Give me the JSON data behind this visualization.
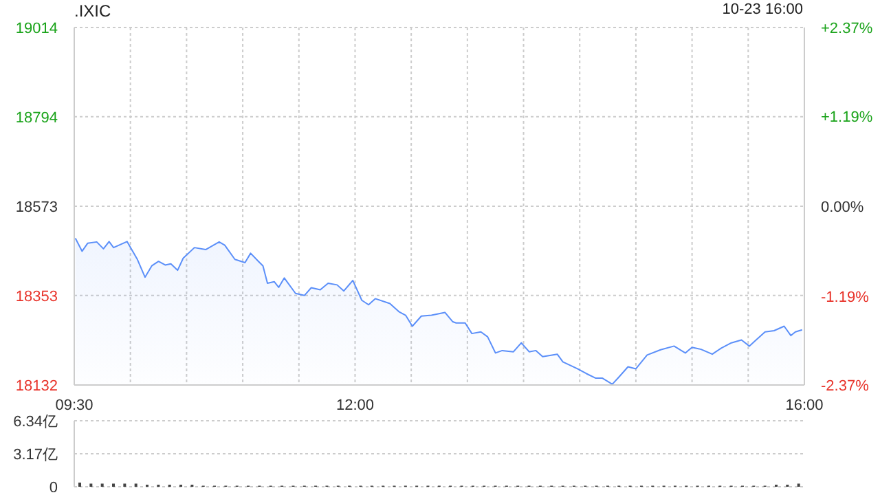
{
  "chart_data": [
    {
      "type": "area",
      "title": ".IXIC",
      "subtitle": "10-23 16:00",
      "x": [
        9.51,
        9.57,
        9.62,
        9.7,
        9.76,
        9.81,
        9.85,
        9.97,
        10.06,
        10.13,
        10.19,
        10.25,
        10.31,
        10.36,
        10.42,
        10.47,
        10.57,
        10.67,
        10.79,
        10.84,
        10.93,
        11.02,
        11.07,
        11.14,
        11.18,
        11.22,
        11.28,
        11.32,
        11.37,
        11.47,
        11.55,
        11.61,
        11.69,
        11.76,
        11.84,
        11.9,
        11.98,
        12.06,
        12.12,
        12.18,
        12.31,
        12.39,
        12.45,
        12.51,
        12.59,
        12.68,
        12.8,
        12.87,
        12.9,
        12.98,
        13.04,
        13.12,
        13.18,
        13.25,
        13.31,
        13.41,
        13.48,
        13.55,
        13.61,
        13.67,
        13.8,
        13.85,
        13.98,
        14.06,
        14.14,
        14.2,
        14.29,
        14.35,
        14.43,
        14.5,
        14.6,
        14.72,
        14.84,
        14.94,
        15,
        15.08,
        15.18,
        15.26,
        15.35,
        15.44,
        15.51,
        15.57,
        15.65,
        15.73,
        15.82,
        15.88,
        15.92,
        15.98
      ],
      "series": [
        {
          "color": "#5b8ff9",
          "values": [
            18494,
            18462,
            18482,
            18485,
            18468,
            18486,
            18471,
            18486,
            18443,
            18398,
            18426,
            18437,
            18428,
            18431,
            18415,
            18445,
            18471,
            18466,
            18485,
            18477,
            18442,
            18434,
            18457,
            18437,
            18426,
            18383,
            18387,
            18373,
            18396,
            18358,
            18353,
            18372,
            18367,
            18383,
            18379,
            18364,
            18390,
            18341,
            18330,
            18345,
            18333,
            18313,
            18304,
            18277,
            18302,
            18304,
            18311,
            18288,
            18285,
            18285,
            18259,
            18263,
            18251,
            18211,
            18217,
            18214,
            18236,
            18214,
            18217,
            18202,
            18208,
            18189,
            18172,
            18160,
            18149,
            18149,
            18134,
            18152,
            18177,
            18172,
            18206,
            18219,
            18228,
            18211,
            18225,
            18220,
            18208,
            18223,
            18236,
            18243,
            18228,
            18243,
            18263,
            18266,
            18277,
            18254,
            18263,
            18268
          ]
        }
      ],
      "xlim": [
        9.5,
        16
      ],
      "xticks": [
        {
          "value": 9.5,
          "label": "09:30"
        },
        {
          "value": 10,
          "label": null
        },
        {
          "value": 10.5,
          "label": null
        },
        {
          "value": 11,
          "label": null
        },
        {
          "value": 11.5,
          "label": null
        },
        {
          "value": 12,
          "label": "12:00"
        },
        {
          "value": 12.5,
          "label": null
        },
        {
          "value": 13,
          "label": null
        },
        {
          "value": 13.5,
          "label": null
        },
        {
          "value": 14,
          "label": null
        },
        {
          "value": 14.5,
          "label": null
        },
        {
          "value": 15,
          "label": null
        },
        {
          "value": 15.5,
          "label": null
        },
        {
          "value": 16,
          "label": "16:00"
        }
      ],
      "ylim": [
        18132,
        19014
      ],
      "yticks": [
        18132,
        18353,
        18573,
        18794,
        19014
      ],
      "y2lim": [
        -2.37,
        2.37
      ],
      "y2ticks": [
        {
          "value": -2.37,
          "label": "-2.37%"
        },
        {
          "value": -1.19,
          "label": "-1.19%"
        },
        {
          "value": 0,
          "label": "0.00%"
        },
        {
          "value": 1.19,
          "label": "+1.19%"
        },
        {
          "value": 2.37,
          "label": "+2.37%"
        }
      ],
      "grid": true,
      "line_style": "solid"
    },
    {
      "type": "bar",
      "x": [
        9.55,
        9.65,
        9.75,
        9.85,
        9.95,
        10.05,
        10.15,
        10.25,
        10.35,
        10.45,
        10.55,
        10.65,
        10.75,
        10.85,
        10.95,
        11.05,
        11.15,
        11.25,
        11.35,
        11.45,
        11.55,
        11.65,
        11.75,
        11.85,
        11.95,
        12.05,
        12.15,
        12.25,
        12.35,
        12.45,
        12.55,
        12.65,
        12.75,
        12.85,
        12.95,
        13.05,
        13.15,
        13.25,
        13.35,
        13.45,
        13.55,
        13.65,
        13.75,
        13.85,
        13.95,
        14.05,
        14.15,
        14.25,
        14.35,
        14.45,
        14.55,
        14.65,
        14.75,
        14.85,
        14.95,
        15.05,
        15.15,
        15.25,
        15.35,
        15.45,
        15.55,
        15.65,
        15.75,
        15.85,
        15.95
      ],
      "series": [
        {
          "color": "#444444",
          "values": [
            0.4,
            0.3,
            0.3,
            0.3,
            0.3,
            0.3,
            0.2,
            0.2,
            0.2,
            0.2,
            0.2,
            0.1,
            0.1,
            0.1,
            0.1,
            0.1,
            0.1,
            0.1,
            0.1,
            0.1,
            0.1,
            0.1,
            0.1,
            0.1,
            0.1,
            0.1,
            0.1,
            0.1,
            0.1,
            0.1,
            0.1,
            0.1,
            0.1,
            0.1,
            0.1,
            0.1,
            0.1,
            0.1,
            0.1,
            0.1,
            0.1,
            0.1,
            0.1,
            0.1,
            0.1,
            0.1,
            0.1,
            0.1,
            0.1,
            0.1,
            0.1,
            0.1,
            0.1,
            0.1,
            0.1,
            0.1,
            0.1,
            0.1,
            0.1,
            0.1,
            0.1,
            0.1,
            0.2,
            0.2,
            0.3
          ]
        }
      ],
      "xlim": [
        9.5,
        16
      ],
      "ylim": [
        0,
        6.34
      ],
      "yticks": [
        0,
        {
          "value": 3.17,
          "label": "3.17亿"
        },
        {
          "value": 6.34,
          "label": "6.34亿"
        }
      ],
      "tick_labels": "y",
      "grid": "y"
    }
  ]
}
